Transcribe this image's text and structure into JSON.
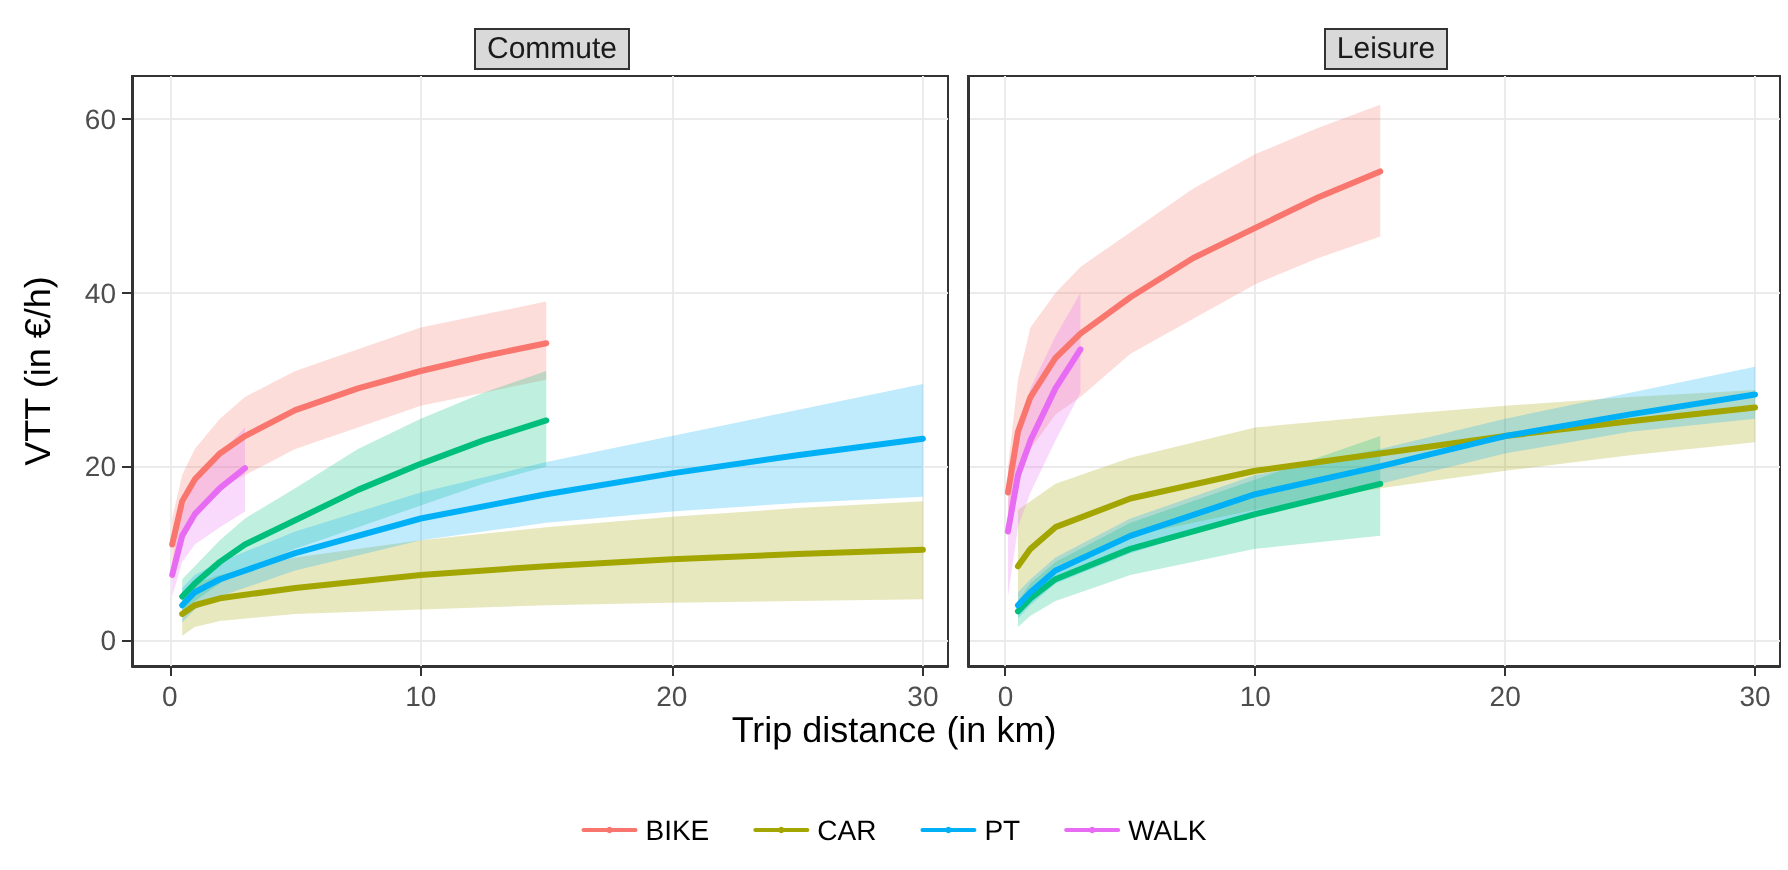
{
  "chart_data": [
    {
      "type": "line",
      "title": "Commute",
      "xlabel": "Trip distance (in km)",
      "ylabel": "VTT (in €/h)",
      "xlim": [
        -1.5,
        31
      ],
      "xticks": [
        0,
        10,
        20,
        30
      ],
      "ylim": [
        -3,
        65
      ],
      "yticks": [
        0,
        20,
        40,
        60
      ],
      "grid": true,
      "legend": "bottom",
      "marker": "none",
      "line_style": "solid",
      "series": [
        {
          "name": "BIKE",
          "color": "#f8766d",
          "x": [
            0.1,
            0.5,
            1,
            2,
            3,
            5,
            7.5,
            10,
            12.5,
            15
          ],
          "values": [
            11,
            16,
            18.5,
            21.5,
            23.5,
            26.5,
            29,
            31,
            32.7,
            34.2
          ],
          "lower": [
            7,
            12,
            15,
            17.5,
            19,
            22,
            24.5,
            27,
            28.5,
            30
          ],
          "upper": [
            14,
            19,
            22,
            25.5,
            28,
            31,
            33.5,
            36,
            37.5,
            39
          ]
        },
        {
          "name": "CAR",
          "color": "#a3a500",
          "x": [
            0.5,
            1,
            2,
            5,
            10,
            15,
            20,
            25,
            30
          ],
          "values": [
            3,
            4,
            4.8,
            6,
            7.5,
            8.5,
            9.3,
            9.9,
            10.4
          ],
          "lower": [
            0.5,
            1.5,
            2.2,
            3,
            3.5,
            4,
            4.3,
            4.5,
            4.7
          ],
          "upper": [
            5.5,
            6.5,
            7.5,
            9.5,
            11.5,
            13,
            14.2,
            15.2,
            16
          ]
        },
        {
          "color": "#00bf7d",
          "x": [
            0.5,
            1,
            2,
            3,
            5,
            7.5,
            10,
            12.5,
            15
          ],
          "values": [
            5,
            6.5,
            9,
            11,
            13.8,
            17.3,
            20.3,
            23,
            25.3
          ],
          "lower": [
            3,
            4.5,
            6.5,
            8,
            10.5,
            13,
            15.5,
            18,
            20
          ],
          "upper": [
            7,
            8.5,
            11.5,
            14,
            17.5,
            22,
            25.5,
            28.5,
            31
          ]
        },
        {
          "name": "PT",
          "color": "#00b0f6",
          "x": [
            0.5,
            1,
            2,
            5,
            10,
            15,
            20,
            25,
            30
          ],
          "values": [
            4,
            5.5,
            7,
            10,
            14,
            16.8,
            19.2,
            21.3,
            23.2
          ],
          "lower": [
            2,
            3.5,
            5,
            8,
            11.5,
            13.5,
            14.8,
            15.8,
            16.5
          ],
          "upper": [
            6,
            7.5,
            9,
            12.5,
            17,
            20.5,
            23.5,
            26.5,
            29.5
          ]
        },
        {
          "name": "WALK",
          "color": "#e76bf3",
          "x": [
            0.1,
            0.5,
            1,
            2,
            3
          ],
          "values": [
            7.5,
            12,
            14.5,
            17.5,
            19.8
          ],
          "lower": [
            5,
            9,
            11,
            13,
            14.8
          ],
          "upper": [
            9,
            15,
            18,
            21.5,
            24.5
          ]
        }
      ]
    },
    {
      "type": "line",
      "title": "Leisure",
      "xlim": [
        -1.5,
        31
      ],
      "xticks": [
        0,
        10,
        20,
        30
      ],
      "ylim": [
        -3,
        65
      ],
      "yticks": [
        0,
        20,
        40,
        60
      ],
      "tick_labels": "x",
      "grid": true,
      "marker": "none",
      "line_style": "solid",
      "series": [
        {
          "color": "#f8766d",
          "x": [
            0.1,
            0.5,
            1,
            2,
            3,
            5,
            7.5,
            10,
            12.5,
            15
          ],
          "values": [
            17,
            24,
            28,
            32.5,
            35.3,
            39.5,
            44,
            47.5,
            51,
            54
          ],
          "lower": [
            13,
            18,
            22,
            26,
            28,
            33,
            37,
            41,
            44,
            46.5
          ],
          "upper": [
            20,
            30,
            36,
            40,
            43,
            47,
            52,
            56,
            59,
            61.7
          ]
        },
        {
          "color": "#a3a500",
          "x": [
            0.5,
            1,
            2,
            5,
            10,
            15,
            20,
            25,
            30
          ],
          "values": [
            8.5,
            10.5,
            13,
            16.3,
            19.5,
            21.5,
            23.5,
            25.2,
            26.8
          ],
          "lower": [
            4,
            6,
            8.5,
            12,
            15,
            17.5,
            19.5,
            21.3,
            22.8
          ],
          "upper": [
            15,
            16,
            18,
            21,
            24.5,
            25.8,
            27,
            28,
            28.8
          ]
        },
        {
          "color": "#00bf7d",
          "x": [
            0.5,
            1,
            2,
            5,
            10,
            15
          ],
          "values": [
            3.3,
            4.8,
            7,
            10.5,
            14.5,
            18
          ],
          "lower": [
            1.5,
            2.8,
            4.5,
            7.5,
            10.5,
            12
          ],
          "upper": [
            4.5,
            6.5,
            9,
            13.5,
            18.5,
            23.5
          ]
        },
        {
          "color": "#00b0f6",
          "x": [
            0.5,
            1,
            2,
            5,
            10,
            15,
            20,
            25,
            30
          ],
          "values": [
            4,
            5.5,
            8,
            12,
            16.8,
            20,
            23.5,
            26,
            28.3
          ],
          "lower": [
            2.5,
            4,
            6.5,
            10,
            14.5,
            18,
            21.5,
            24,
            25.5
          ],
          "upper": [
            5.5,
            7,
            9.5,
            14,
            19,
            22,
            25.5,
            28.5,
            31.5
          ]
        },
        {
          "color": "#e76bf3",
          "x": [
            0.1,
            0.5,
            1,
            2,
            3
          ],
          "values": [
            12.5,
            19,
            23,
            29,
            33.5
          ],
          "lower": [
            5,
            13,
            17,
            23,
            28.5
          ],
          "upper": [
            16,
            24,
            29,
            35,
            40
          ]
        }
      ]
    }
  ]
}
